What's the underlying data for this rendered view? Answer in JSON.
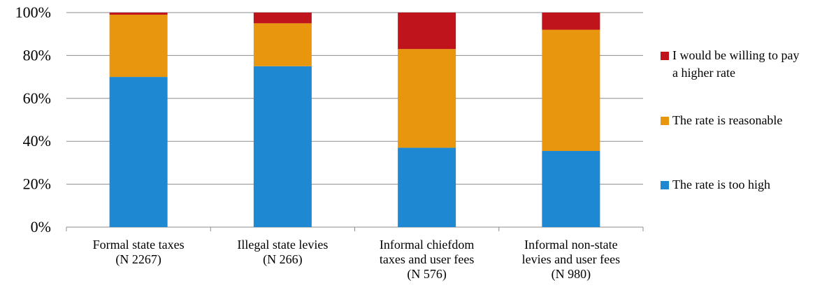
{
  "chart_data": {
    "type": "bar",
    "stacked": true,
    "percent": true,
    "categories": [
      [
        "Formal state taxes",
        "(N 2267)"
      ],
      [
        "Illegal state levies",
        "(N 266)"
      ],
      [
        "Informal chiefdom",
        "taxes and user fees",
        "(N 576)"
      ],
      [
        "Informal non-state",
        "levies and user fees",
        "(N 980)"
      ]
    ],
    "series": [
      {
        "name": "The rate is too high",
        "color": "#1f88d2",
        "values": [
          70,
          75,
          37,
          35.5
        ]
      },
      {
        "name": "The rate is reasonable",
        "color": "#e8960e",
        "values": [
          29,
          20,
          46,
          56.5
        ]
      },
      {
        "name": "I would be willing to pay a higher rate",
        "legend_lines": [
          "I would be willing to pay",
          "a higher rate"
        ],
        "color": "#c0141d",
        "values": [
          1,
          5,
          17,
          8
        ]
      }
    ],
    "ylim": [
      0,
      100
    ],
    "yticks": [
      "0%",
      "20%",
      "40%",
      "60%",
      "80%",
      "100%"
    ],
    "grid": true,
    "legend_position": "right"
  }
}
